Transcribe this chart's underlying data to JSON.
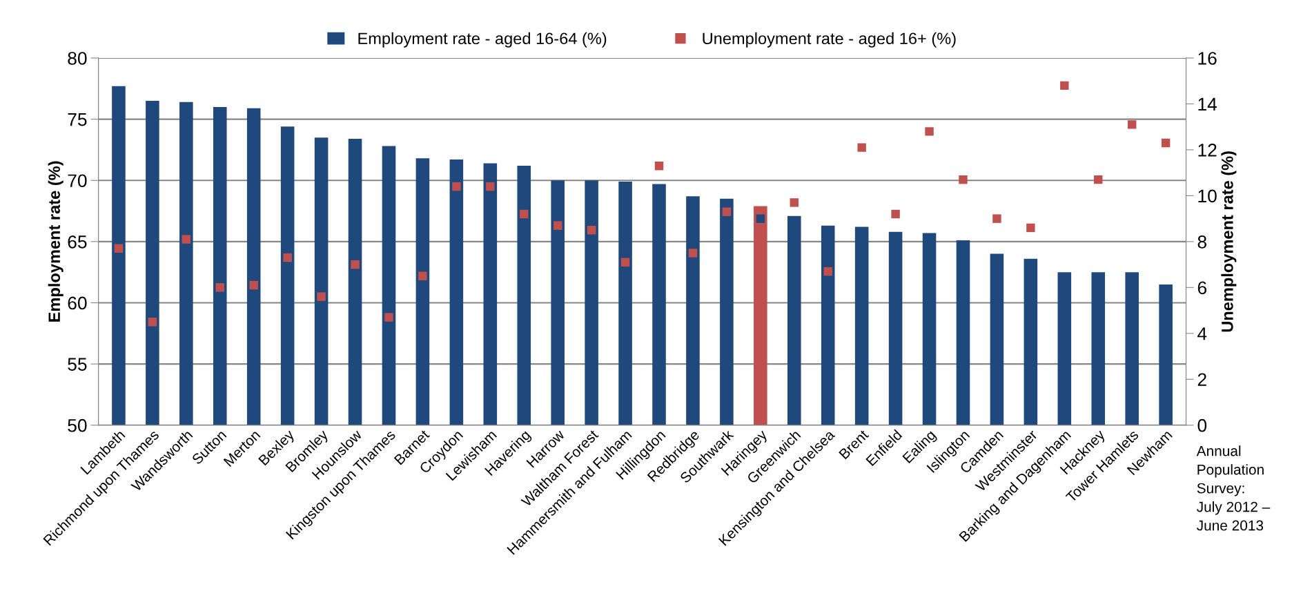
{
  "chart_data": {
    "type": "bar",
    "categories": [
      "Lambeth",
      "Richmond upon Thames",
      "Wandsworth",
      "Sutton",
      "Merton",
      "Bexley",
      "Bromley",
      "Hounslow",
      "Kingston upon Thames",
      "Barnet",
      "Croydon",
      "Lewisham",
      "Havering",
      "Harrow",
      "Waltham Forest",
      "Hammersmith and Fulham",
      "Hillingdon",
      "Redbridge",
      "Southwark",
      "Haringey",
      "Greenwich",
      "Kensington and Chelsea",
      "Brent",
      "Enfield",
      "Ealing",
      "Islington",
      "Camden",
      "Westminster",
      "Barking and Dagenham",
      "Hackney",
      "Tower Hamlets",
      "Newham"
    ],
    "series": [
      {
        "name": "Employment rate - aged 16-64 (%)",
        "color": "#1f497d",
        "colors": [
          "#1f497d",
          "#1f497d",
          "#1f497d",
          "#1f497d",
          "#1f497d",
          "#1f497d",
          "#1f497d",
          "#1f497d",
          "#1f497d",
          "#1f497d",
          "#1f497d",
          "#1f497d",
          "#1f497d",
          "#1f497d",
          "#1f497d",
          "#1f497d",
          "#1f497d",
          "#1f497d",
          "#1f497d",
          "#c0504d",
          "#1f497d",
          "#1f497d",
          "#1f497d",
          "#1f497d",
          "#1f497d",
          "#1f497d",
          "#1f497d",
          "#1f497d",
          "#1f497d",
          "#1f497d",
          "#1f497d",
          "#1f497d"
        ],
        "values": [
          77.7,
          76.5,
          76.4,
          76.0,
          75.9,
          74.4,
          73.5,
          73.4,
          72.8,
          71.8,
          71.7,
          71.4,
          71.2,
          70.0,
          70.0,
          69.9,
          69.7,
          68.7,
          68.5,
          67.9,
          67.1,
          66.3,
          66.2,
          65.8,
          65.7,
          65.1,
          64.0,
          63.6,
          62.5,
          62.5,
          62.5,
          61.5
        ]
      },
      {
        "name": "Unemployment rate - aged 16+ (%)",
        "type": "scatter",
        "axis": "y2",
        "marker": "square",
        "color": "#c0504d",
        "colors": [
          "#c0504d",
          "#c0504d",
          "#c0504d",
          "#c0504d",
          "#c0504d",
          "#c0504d",
          "#c0504d",
          "#c0504d",
          "#c0504d",
          "#c0504d",
          "#c0504d",
          "#c0504d",
          "#c0504d",
          "#c0504d",
          "#c0504d",
          "#c0504d",
          "#c0504d",
          "#c0504d",
          "#c0504d",
          "#1f497d",
          "#c0504d",
          "#c0504d",
          "#c0504d",
          "#c0504d",
          "#c0504d",
          "#c0504d",
          "#c0504d",
          "#c0504d",
          "#c0504d",
          "#c0504d",
          "#c0504d",
          "#c0504d"
        ],
        "values": [
          7.7,
          4.5,
          8.1,
          6.0,
          6.1,
          7.3,
          5.6,
          7.0,
          4.7,
          6.5,
          10.4,
          10.4,
          9.2,
          8.7,
          8.5,
          7.1,
          11.3,
          7.5,
          9.3,
          9.0,
          9.7,
          6.7,
          12.1,
          9.2,
          12.8,
          10.7,
          9.0,
          8.6,
          14.8,
          10.7,
          13.1,
          12.3
        ]
      }
    ],
    "ylabel": "Employment rate (%)",
    "y2label": "Unemployment rate (%)",
    "ylim": [
      50,
      80
    ],
    "yticks": [
      50,
      55,
      60,
      65,
      70,
      75,
      80
    ],
    "y2lim": [
      0,
      16
    ],
    "y2ticks": [
      0,
      2,
      4,
      6,
      8,
      10,
      12,
      14,
      16
    ],
    "grid": "y",
    "legend": "top",
    "annotations": [
      "Annual\nPopulation\nSurvey:\nJuly 2012 –\nJune 2013"
    ]
  }
}
